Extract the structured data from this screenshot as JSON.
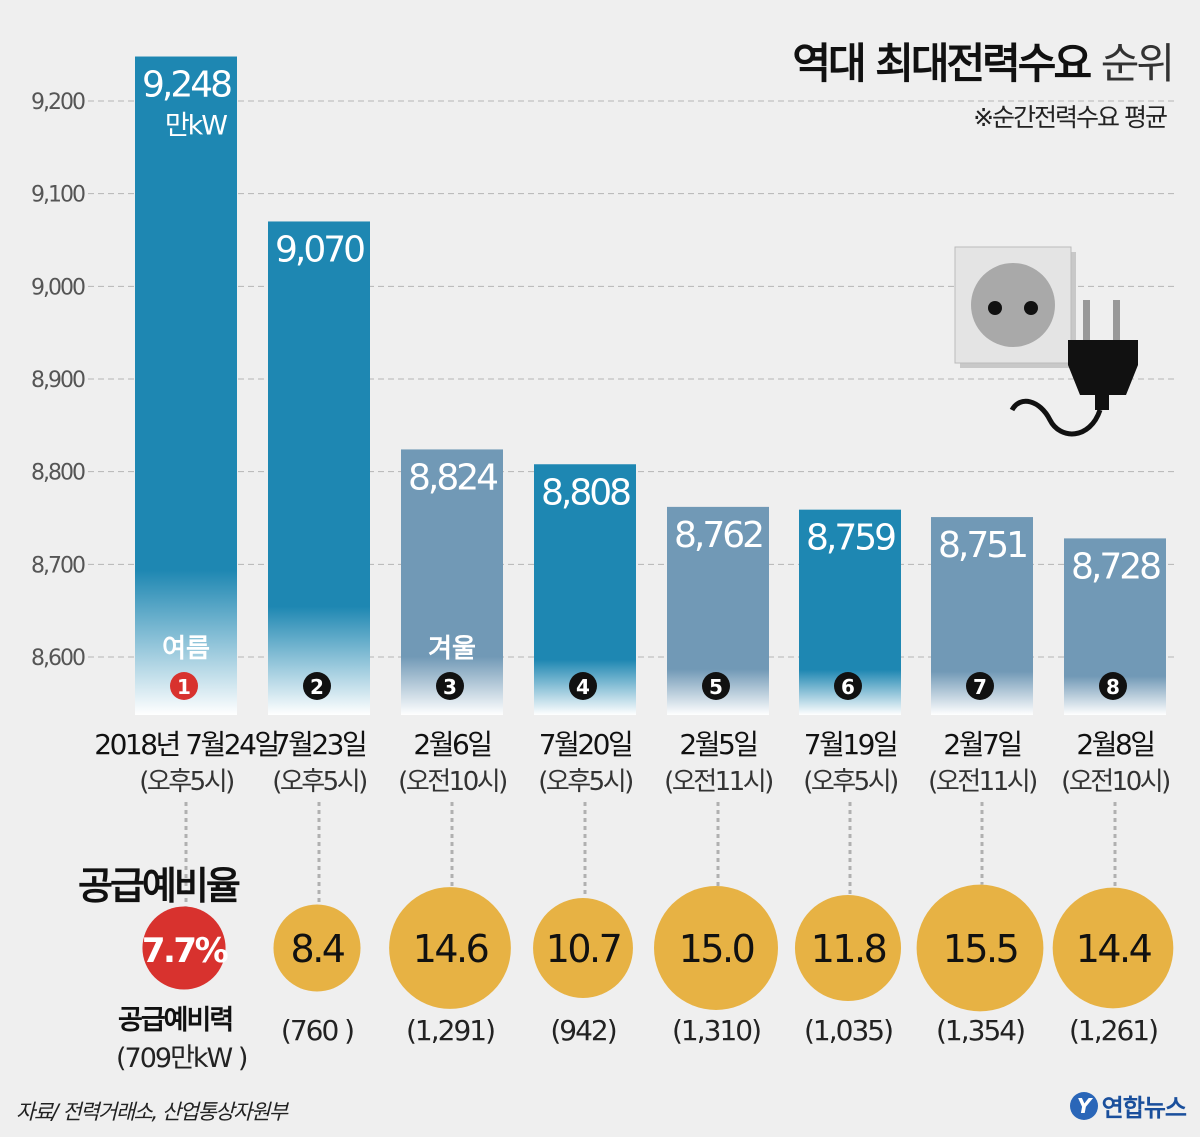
{
  "title": {
    "bold": "역대 최대전력수요",
    "light": "순위"
  },
  "subtitle": "※순간전력수요 평균",
  "source": "자료/ 전력거래소, 산업통상자원부",
  "logo": {
    "mark": "Y",
    "text": "연합뉴스"
  },
  "reserve_rate_title": "공급예비율",
  "reserve_power_title": "공급예비력",
  "reserve_power_first": "(709만kW )",
  "colors": {
    "summer": "#1e87b2",
    "winter": "#7199b6",
    "highlight": "#d8322e",
    "bubble": "#e7b244",
    "background": "#efefef"
  },
  "chart_data": {
    "type": "bar",
    "unit_label": "만kW",
    "ylim": [
      8550,
      9260
    ],
    "yticks": [
      "8,600",
      "8,700",
      "8,800",
      "8,900",
      "9,000",
      "9,100",
      "9,200"
    ],
    "ytick_values": [
      8600,
      8700,
      8800,
      8900,
      9000,
      9100,
      9200
    ],
    "grid": true,
    "categories": [
      "2018년 7월24일",
      "7월23일",
      "2월6일",
      "7월20일",
      "2월5일",
      "7월19일",
      "2월7일",
      "2월8일"
    ],
    "times": [
      "(오후5시)",
      "(오후5시)",
      "(오전10시)",
      "(오후5시)",
      "(오전11시)",
      "(오후5시)",
      "(오전11시)",
      "(오전10시)"
    ],
    "values": [
      9248,
      9070,
      8824,
      8808,
      8762,
      8759,
      8751,
      8728
    ],
    "value_labels": [
      "9,248",
      "9,070",
      "8,824",
      "8,808",
      "8,762",
      "8,759",
      "8,751",
      "8,728"
    ],
    "seasons": [
      "summer",
      "summer",
      "winter",
      "summer",
      "winter",
      "summer",
      "winter",
      "winter"
    ],
    "season_labels": [
      "여름",
      "",
      "겨울",
      "",
      "",
      "",
      "",
      ""
    ],
    "ranks": [
      "1",
      "2",
      "3",
      "4",
      "5",
      "6",
      "7",
      "8"
    ],
    "reserve_rate_labels": [
      "7.7%",
      "8.4",
      "14.6",
      "10.7",
      "15.0",
      "11.8",
      "15.5",
      "14.4"
    ],
    "reserve_rate": [
      7.7,
      8.4,
      14.6,
      10.7,
      15.0,
      11.8,
      15.5,
      14.4
    ],
    "reserve_power_labels": [
      "",
      "(760 )",
      "(1,291)",
      "(942)",
      "(1,310)",
      "(1,035)",
      "(1,354)",
      "(1,261)"
    ]
  }
}
